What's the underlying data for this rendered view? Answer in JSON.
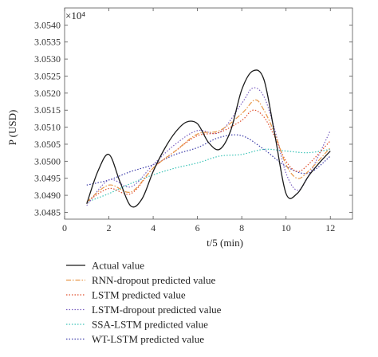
{
  "chart_data": {
    "type": "line",
    "xlabel": "t/5 (min)",
    "ylabel": "P (USD)",
    "y_multiplier": "×10⁴",
    "xlim": [
      0,
      13
    ],
    "ylim": [
      3.0483,
      3.0545
    ],
    "x_ticks": [
      0,
      2,
      4,
      6,
      8,
      10,
      12
    ],
    "y_ticks": [
      3.0485,
      3.049,
      3.0495,
      3.05,
      3.0505,
      3.051,
      3.0515,
      3.052,
      3.0525,
      3.053,
      3.0535,
      3.054
    ],
    "y_tick_labels": [
      "3.0485",
      "3.0490",
      "3.0495",
      "3.0500",
      "3.0505",
      "3.0510",
      "3.0515",
      "3.0520",
      "3.0525",
      "3.0530",
      "3.0535",
      "3.0540"
    ],
    "grid": false,
    "legend_position": "below",
    "series": [
      {
        "name": "Actual value",
        "color": "#1a1a1a",
        "dash": "",
        "x": [
          1,
          1.5,
          2,
          2.5,
          3,
          3.5,
          4,
          4.5,
          5,
          5.5,
          6,
          6.5,
          7,
          7.5,
          8,
          8.5,
          9,
          9.5,
          10,
          10.5,
          11,
          11.5,
          12
        ],
        "y": [
          3.04875,
          3.0497,
          3.0502,
          3.0494,
          3.04868,
          3.0489,
          3.0497,
          3.05035,
          3.05085,
          3.05115,
          3.0511,
          3.05055,
          3.05035,
          3.0509,
          3.0521,
          3.05265,
          3.0524,
          3.05075,
          3.04905,
          3.04905,
          3.04955,
          3.04995,
          3.0503
        ]
      },
      {
        "name": "RNN-dropout predicted value",
        "color": "#e8984a",
        "dash": "6,2,1.5,2",
        "x": [
          1,
          2,
          3,
          4,
          5,
          6,
          7,
          8,
          8.6,
          9,
          9.5,
          10,
          10.5,
          11,
          12
        ],
        "y": [
          3.0488,
          3.0493,
          3.0491,
          3.0498,
          3.0503,
          3.0508,
          3.0509,
          3.0514,
          3.0518,
          3.0515,
          3.0508,
          3.0499,
          3.0495,
          3.0497,
          3.0504
        ]
      },
      {
        "name": "LSTM predicted value",
        "color": "#e0502e",
        "dash": "1.5,2",
        "x": [
          1,
          2,
          3,
          4,
          5,
          6,
          7,
          8,
          8.5,
          9,
          9.5,
          10,
          10.5,
          11,
          12
        ],
        "y": [
          3.0488,
          3.0492,
          3.04905,
          3.0498,
          3.0503,
          3.05075,
          3.05085,
          3.0512,
          3.0515,
          3.0513,
          3.0507,
          3.05,
          3.0497,
          3.0499,
          3.0506
        ]
      },
      {
        "name": "LSTM-dropout predicted value",
        "color": "#7a5fc0",
        "dash": "1.5,2",
        "x": [
          1,
          2,
          3,
          4,
          5,
          6,
          7,
          8,
          8.5,
          9,
          9.5,
          10,
          10.5,
          11,
          12
        ],
        "y": [
          3.0487,
          3.04945,
          3.04925,
          3.0499,
          3.0505,
          3.0509,
          3.05085,
          3.0517,
          3.05215,
          3.0519,
          3.0509,
          3.04965,
          3.04915,
          3.04955,
          3.0509
        ]
      },
      {
        "name": "SSA-LSTM predicted value",
        "color": "#3cc4b8",
        "dash": "1.5,2",
        "x": [
          1,
          2,
          3,
          4,
          5,
          6,
          7,
          8,
          9,
          10,
          11,
          12
        ],
        "y": [
          3.0488,
          3.04905,
          3.04935,
          3.0496,
          3.0498,
          3.04995,
          3.05015,
          3.0502,
          3.05035,
          3.0503,
          3.05025,
          3.05035
        ]
      },
      {
        "name": "WT-LSTM predicted value",
        "color": "#3a3aa8",
        "dash": "1.5,2",
        "x": [
          1,
          2,
          3,
          4,
          5,
          6,
          7,
          8,
          9,
          10,
          11,
          12
        ],
        "y": [
          3.0493,
          3.04945,
          3.0497,
          3.0499,
          3.0502,
          3.0504,
          3.0507,
          3.05075,
          3.05035,
          3.04985,
          3.04965,
          3.05015
        ]
      }
    ]
  }
}
